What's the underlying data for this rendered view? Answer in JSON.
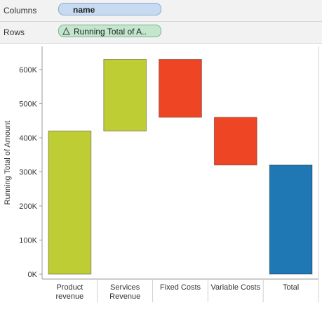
{
  "shelves": {
    "columns_label": "Columns",
    "columns_pill": "name",
    "rows_label": "Rows",
    "rows_pill": "Running Total of A.."
  },
  "colors": {
    "revenue": "#bfcd34",
    "cost": "#ee4625",
    "total": "#1f77b4"
  },
  "chart_data": {
    "type": "bar",
    "subtype": "waterfall",
    "categories": [
      "Product revenue",
      "Services Revenue",
      "Fixed Costs",
      "Variable Costs",
      "Total"
    ],
    "category_lines": [
      [
        "Product",
        "revenue"
      ],
      [
        "Services",
        "Revenue"
      ],
      [
        "Fixed Costs"
      ],
      [
        "Variable Costs"
      ],
      [
        "Total"
      ]
    ],
    "bars": [
      {
        "category": "Product revenue",
        "start": 0,
        "end": 420000,
        "kind": "revenue"
      },
      {
        "category": "Services Revenue",
        "start": 420000,
        "end": 630000,
        "kind": "revenue"
      },
      {
        "category": "Fixed Costs",
        "start": 630000,
        "end": 460000,
        "kind": "cost"
      },
      {
        "category": "Variable Costs",
        "start": 460000,
        "end": 320000,
        "kind": "cost"
      },
      {
        "category": "Total",
        "start": 0,
        "end": 320000,
        "kind": "total"
      }
    ],
    "ylabel": "Running Total of Amount",
    "xlabel": "",
    "ylim": [
      0,
      660000
    ],
    "yticks": [
      0,
      100000,
      200000,
      300000,
      400000,
      500000,
      600000
    ],
    "ytick_labels": [
      "0K",
      "100K",
      "200K",
      "300K",
      "400K",
      "500K",
      "600K"
    ],
    "grid": false
  }
}
